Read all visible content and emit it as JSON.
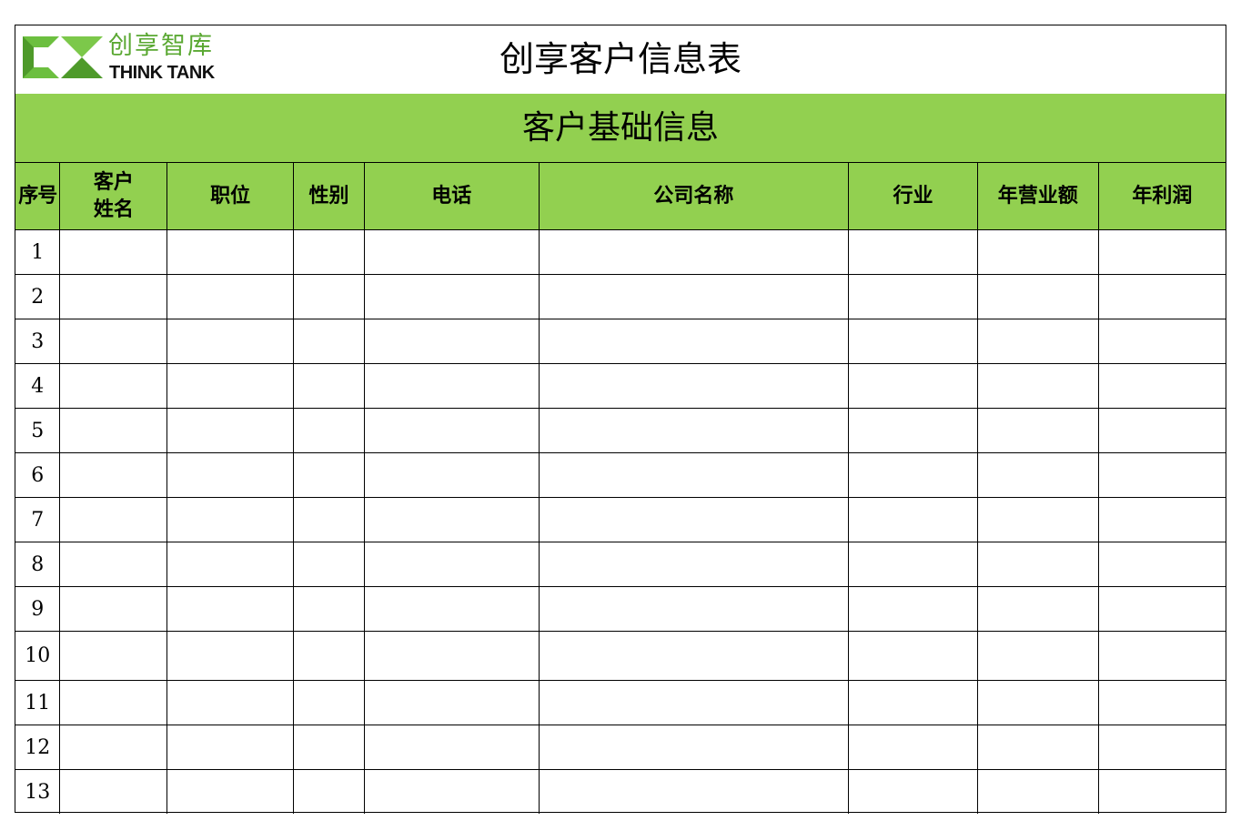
{
  "logo": {
    "cn_text": "创享智库",
    "en_text": "THINK TANK",
    "brand_color": "#5aa832"
  },
  "title": "创享客户信息表",
  "section_title": "客户基础信息",
  "header_color": "#92d050",
  "columns": [
    "序号",
    "客户\n姓名",
    "职位",
    "性别",
    "电话",
    "公司名称",
    "行业",
    "年营业额",
    "年利润"
  ],
  "rows": [
    "1",
    "2",
    "3",
    "4",
    "5",
    "6",
    "7",
    "8",
    "9",
    "10",
    "11",
    "12",
    "13"
  ]
}
